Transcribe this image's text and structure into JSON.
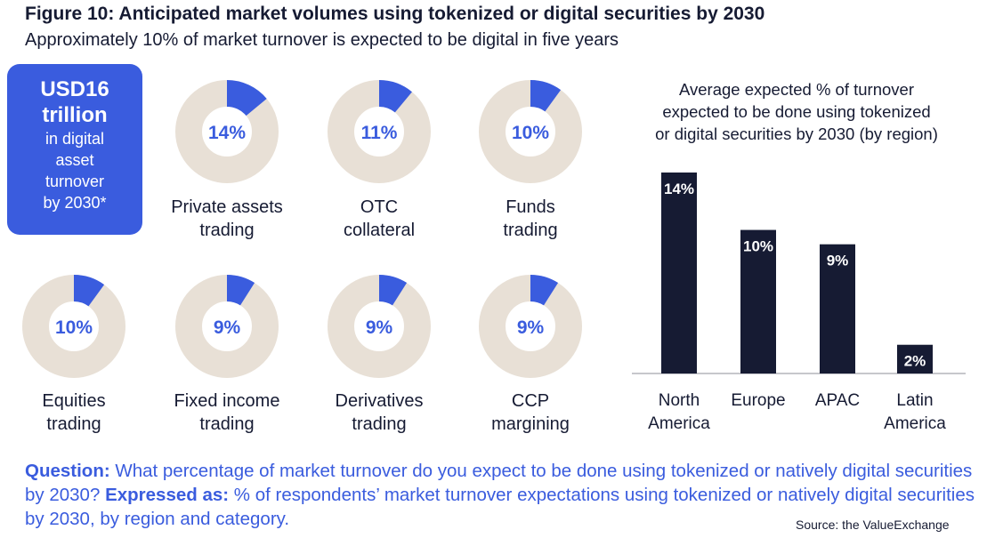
{
  "figure": {
    "title": "Figure 10: Anticipated market volumes using tokenized or digital securities by 2030",
    "subtitle": "Approximately 10% of market turnover is expected to be digital in five years"
  },
  "callout": {
    "line1": "USD16",
    "line2": "trillion",
    "line3": "in digital",
    "line4": "asset",
    "line5": "turnover",
    "line6": "by 2030*"
  },
  "colors": {
    "accent_blue": "#3a5cde",
    "donut_track": "#e8e0d6",
    "bar_navy": "#161b33",
    "text_dark": "#161b33"
  },
  "donuts": [
    {
      "value": 14,
      "label": "14%",
      "caption1": "Private assets",
      "caption2": "trading"
    },
    {
      "value": 11,
      "label": "11%",
      "caption1": "OTC",
      "caption2": "collateral"
    },
    {
      "value": 10,
      "label": "10%",
      "caption1": "Funds",
      "caption2": "trading"
    },
    {
      "value": 10,
      "label": "10%",
      "caption1": "Equities",
      "caption2": "trading"
    },
    {
      "value": 9,
      "label": "9%",
      "caption1": "Fixed income",
      "caption2": "trading"
    },
    {
      "value": 9,
      "label": "9%",
      "caption1": "Derivatives",
      "caption2": "trading"
    },
    {
      "value": 9,
      "label": "9%",
      "caption1": "CCP",
      "caption2": "margining"
    }
  ],
  "chart_data": {
    "type": "bar",
    "title_lines": [
      "Average expected % of turnover",
      "expected to be done using tokenized",
      "or digital securities by 2030 (by region)"
    ],
    "categories": [
      [
        "North",
        "America"
      ],
      [
        "Europe"
      ],
      [
        "APAC"
      ],
      [
        "Latin",
        "America"
      ]
    ],
    "values": [
      14,
      10,
      9,
      2
    ],
    "value_labels": [
      "14%",
      "10%",
      "9%",
      "2%"
    ],
    "ylim": [
      0,
      14
    ],
    "grid": false,
    "legend": "none"
  },
  "question": {
    "q_label": "Question:",
    "q_text": " What percentage of market turnover do you expect to be done using tokenized or natively digital securities by 2030? ",
    "e_label": "Expressed as:",
    "e_text": " % of respondents’ market turnover expectations using tokenized or natively digital securities by 2030, by region and category."
  },
  "source": "Source: the ValueExchange"
}
